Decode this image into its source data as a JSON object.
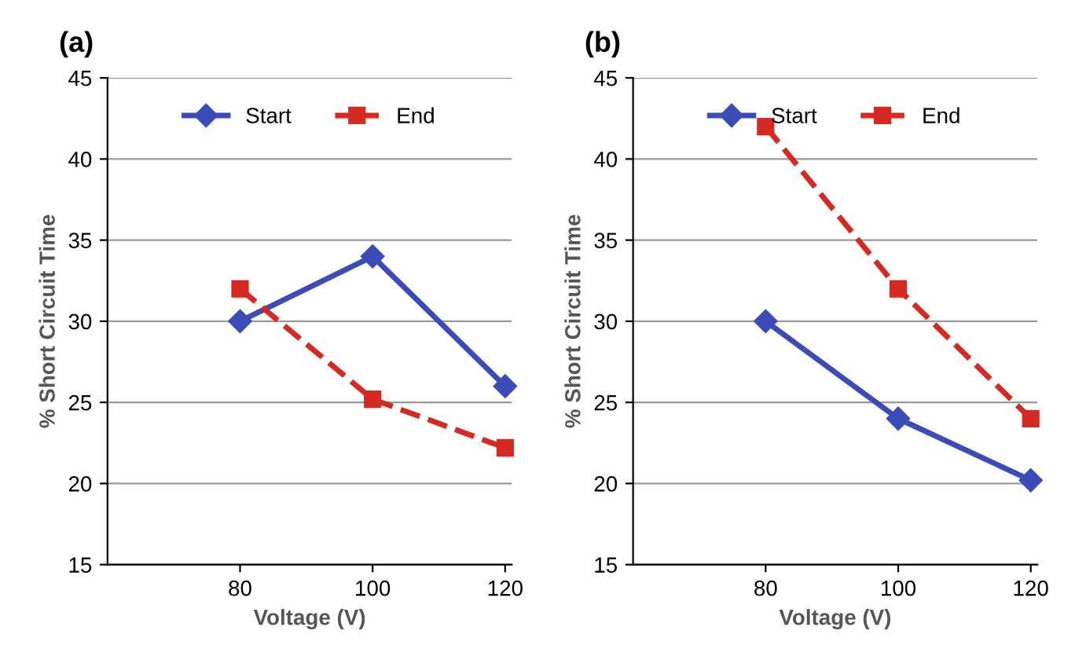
{
  "chart_data": [
    {
      "type": "line",
      "title": "(a)",
      "xlabel": "Voltage (V)",
      "ylabel": "% Short Circuit Time",
      "x": [
        80,
        100,
        120
      ],
      "xlim": [
        60,
        121
      ],
      "xticks": [
        80,
        100,
        120
      ],
      "ylim": [
        15,
        45
      ],
      "yticks": [
        15,
        20,
        25,
        30,
        35,
        40,
        45
      ],
      "grid": "y",
      "legend": "top",
      "series": [
        {
          "name": "Start",
          "color": "#3b4cb8",
          "values": [
            30,
            34,
            26
          ],
          "marker": "diamond",
          "line_style": "solid"
        },
        {
          "name": "End",
          "color": "#d42a22",
          "values": [
            32,
            25.2,
            22.2
          ],
          "marker": "square",
          "line_style": "dashed"
        }
      ]
    },
    {
      "type": "line",
      "title": "(b)",
      "xlabel": "Voltage (V)",
      "ylabel": "% Short Circuit Time",
      "x": [
        80,
        100,
        120
      ],
      "xlim": [
        60,
        121
      ],
      "xticks": [
        80,
        100,
        120
      ],
      "ylim": [
        15,
        45
      ],
      "yticks": [
        15,
        20,
        25,
        30,
        35,
        40,
        45
      ],
      "grid": "y",
      "legend": "top",
      "series": [
        {
          "name": "Start",
          "color": "#3b4cb8",
          "values": [
            30,
            24,
            20.2
          ],
          "marker": "diamond",
          "line_style": "solid"
        },
        {
          "name": "End",
          "color": "#d42a22",
          "values": [
            42,
            32,
            24
          ],
          "marker": "square",
          "line_style": "dashed"
        }
      ]
    }
  ]
}
